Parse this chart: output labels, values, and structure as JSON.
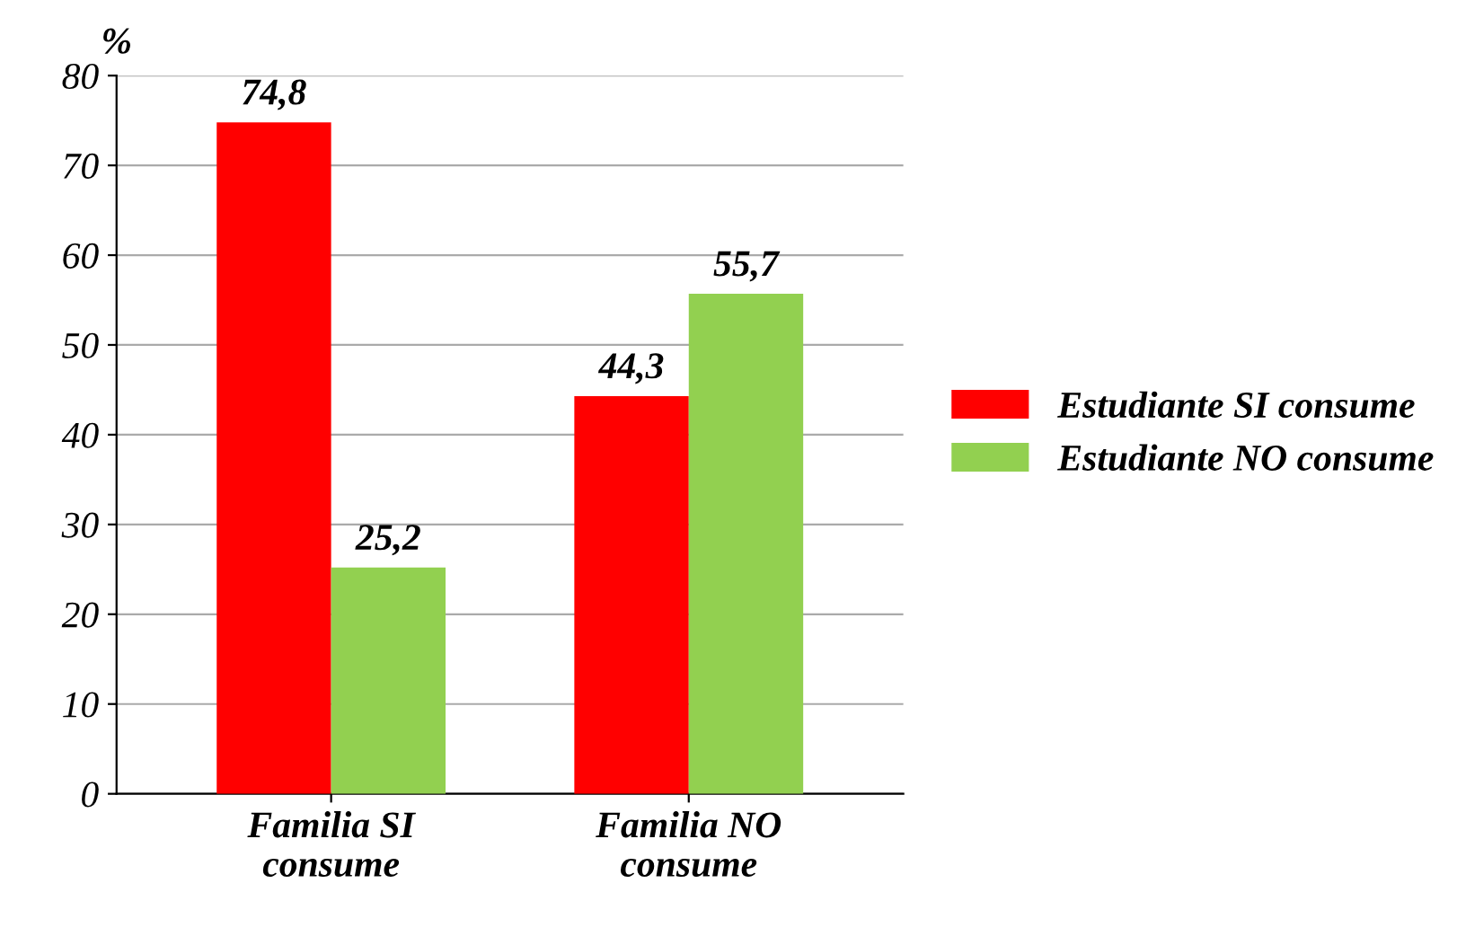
{
  "chart_data": {
    "type": "bar",
    "ylabel": "%",
    "categories": [
      "Familia SI\nconsume",
      "Familia NO\nconsume"
    ],
    "series": [
      {
        "name": "Estudiante SI consume",
        "color": "#ff0000",
        "values": [
          74.8,
          44.3
        ],
        "value_labels": [
          "74,8",
          "44,3"
        ]
      },
      {
        "name": "Estudiante NO consume",
        "color": "#92d050",
        "values": [
          25.2,
          55.7
        ],
        "value_labels": [
          "25,2",
          "55,7"
        ]
      }
    ],
    "ylim": [
      0,
      80
    ],
    "yticks": [
      0,
      10,
      20,
      30,
      40,
      50,
      60,
      70,
      80
    ],
    "grid": "y",
    "legend": "right"
  }
}
